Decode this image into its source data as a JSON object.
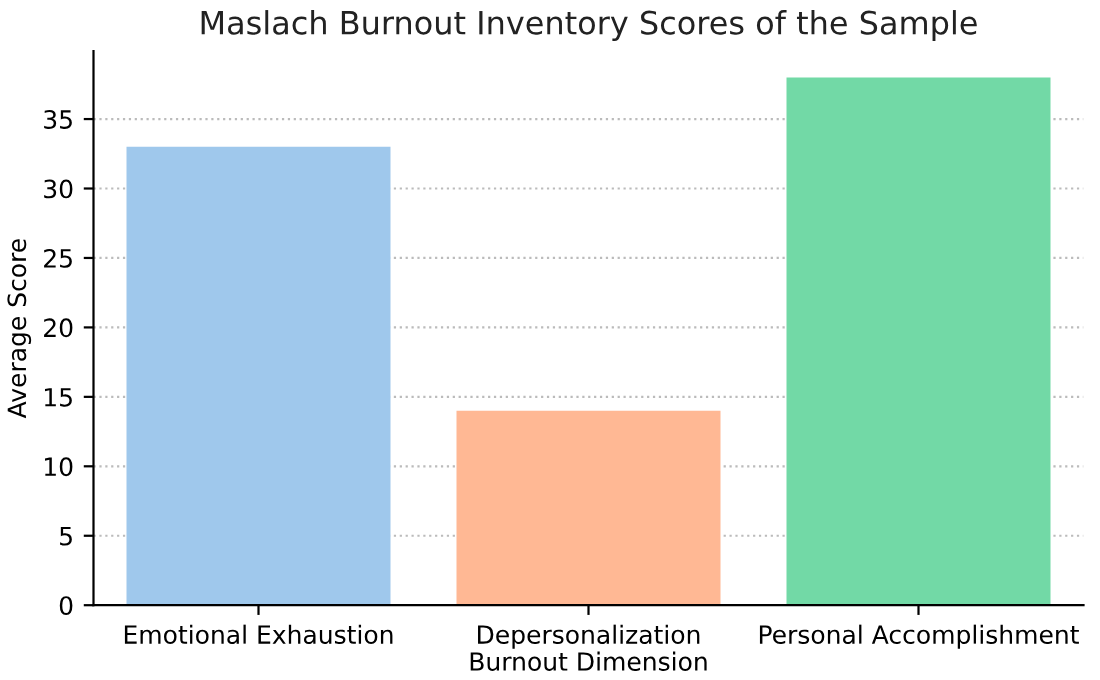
{
  "chart_data": {
    "type": "bar",
    "title": "Maslach Burnout Inventory Scores of the Sample",
    "xlabel": "Burnout Dimension",
    "ylabel": "Average Score",
    "categories": [
      "Emotional Exhaustion",
      "Depersonalization",
      "Personal Accomplishment"
    ],
    "values": [
      33,
      14,
      38
    ],
    "colors": [
      "#9fc8ec",
      "#ffb894",
      "#72d9a6"
    ],
    "ylim": [
      0,
      39.9
    ],
    "yticks": [
      0,
      5,
      10,
      15,
      20,
      25,
      30,
      35
    ],
    "grid": "y",
    "legend": false
  }
}
